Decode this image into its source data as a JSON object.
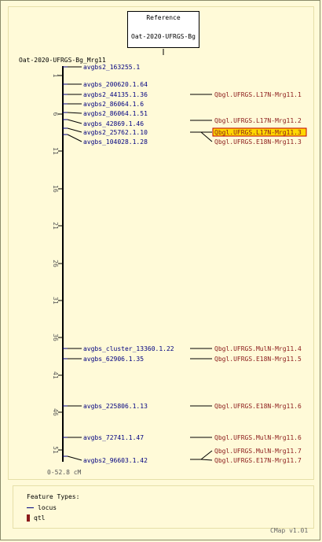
{
  "reference": {
    "label": "Reference",
    "map_name": "Oat-2020-UFRGS-Bg"
  },
  "map": {
    "name": "Oat-2020-UFRGS-Bg_Mrg11",
    "range_label": "0-52.8 cM"
  },
  "axis": {
    "ticks": [
      "1",
      "6",
      "11",
      "16",
      "21",
      "26",
      "31",
      "36",
      "41",
      "46",
      "51"
    ]
  },
  "loci": [
    {
      "label": "avgbs2_163255.1"
    },
    {
      "label": "avgbs_200620.1.64"
    },
    {
      "label": "avgbs2_44135.1.36"
    },
    {
      "label": "avgbs2_86064.1.6"
    },
    {
      "label": "avgbs2_86064.1.51"
    },
    {
      "label": "avgbs_42869.1.46"
    },
    {
      "label": "avgbs2_25762.1.10"
    },
    {
      "label": "avgbs_104028.1.28"
    },
    {
      "label": "avgbs_cluster_13360.1.22"
    },
    {
      "label": "avgbs_62906.1.35"
    },
    {
      "label": "avgbs_225806.1.13"
    },
    {
      "label": "avgbs_72741.1.47"
    },
    {
      "label": "avgbs2_96603.1.42"
    }
  ],
  "qtls": [
    {
      "label": "Qbgl.UFRGS.L17N-Mrg11.1",
      "highlight": false
    },
    {
      "label": "Qbgl.UFRGS.L17N-Mrg11.2",
      "highlight": false
    },
    {
      "label": "Qbgl.UFRGS.L17N-Mrg11.3",
      "highlight": true
    },
    {
      "label": "Qbgl.UFRGS.E18N-Mrg11.3",
      "highlight": false
    },
    {
      "label": "Qbgl.UFRGS.MulN-Mrg11.4",
      "highlight": false
    },
    {
      "label": "Qbgl.UFRGS.E18N-Mrg11.5",
      "highlight": false
    },
    {
      "label": "Qbgl.UFRGS.E18N-Mrg11.6",
      "highlight": false
    },
    {
      "label": "Qbgl.UFRGS.MulN-Mrg11.6",
      "highlight": false
    },
    {
      "label": "Qbgl.UFRGS.MulN-Mrg11.7",
      "highlight": false
    },
    {
      "label": "Qbgl.UFRGS.E17N-Mrg11.7",
      "highlight": false
    }
  ],
  "legend": {
    "title": "Feature Types:",
    "items": [
      {
        "label": "locus",
        "color": "#000080"
      },
      {
        "label": "qtl",
        "color": "#8b1a1a"
      }
    ]
  },
  "colors": {
    "locus": "#000080",
    "qtl": "#8b1a1a",
    "highlight_fill": "#ffd700",
    "highlight_border": "#c00000"
  },
  "version": "CMap v1.01"
}
